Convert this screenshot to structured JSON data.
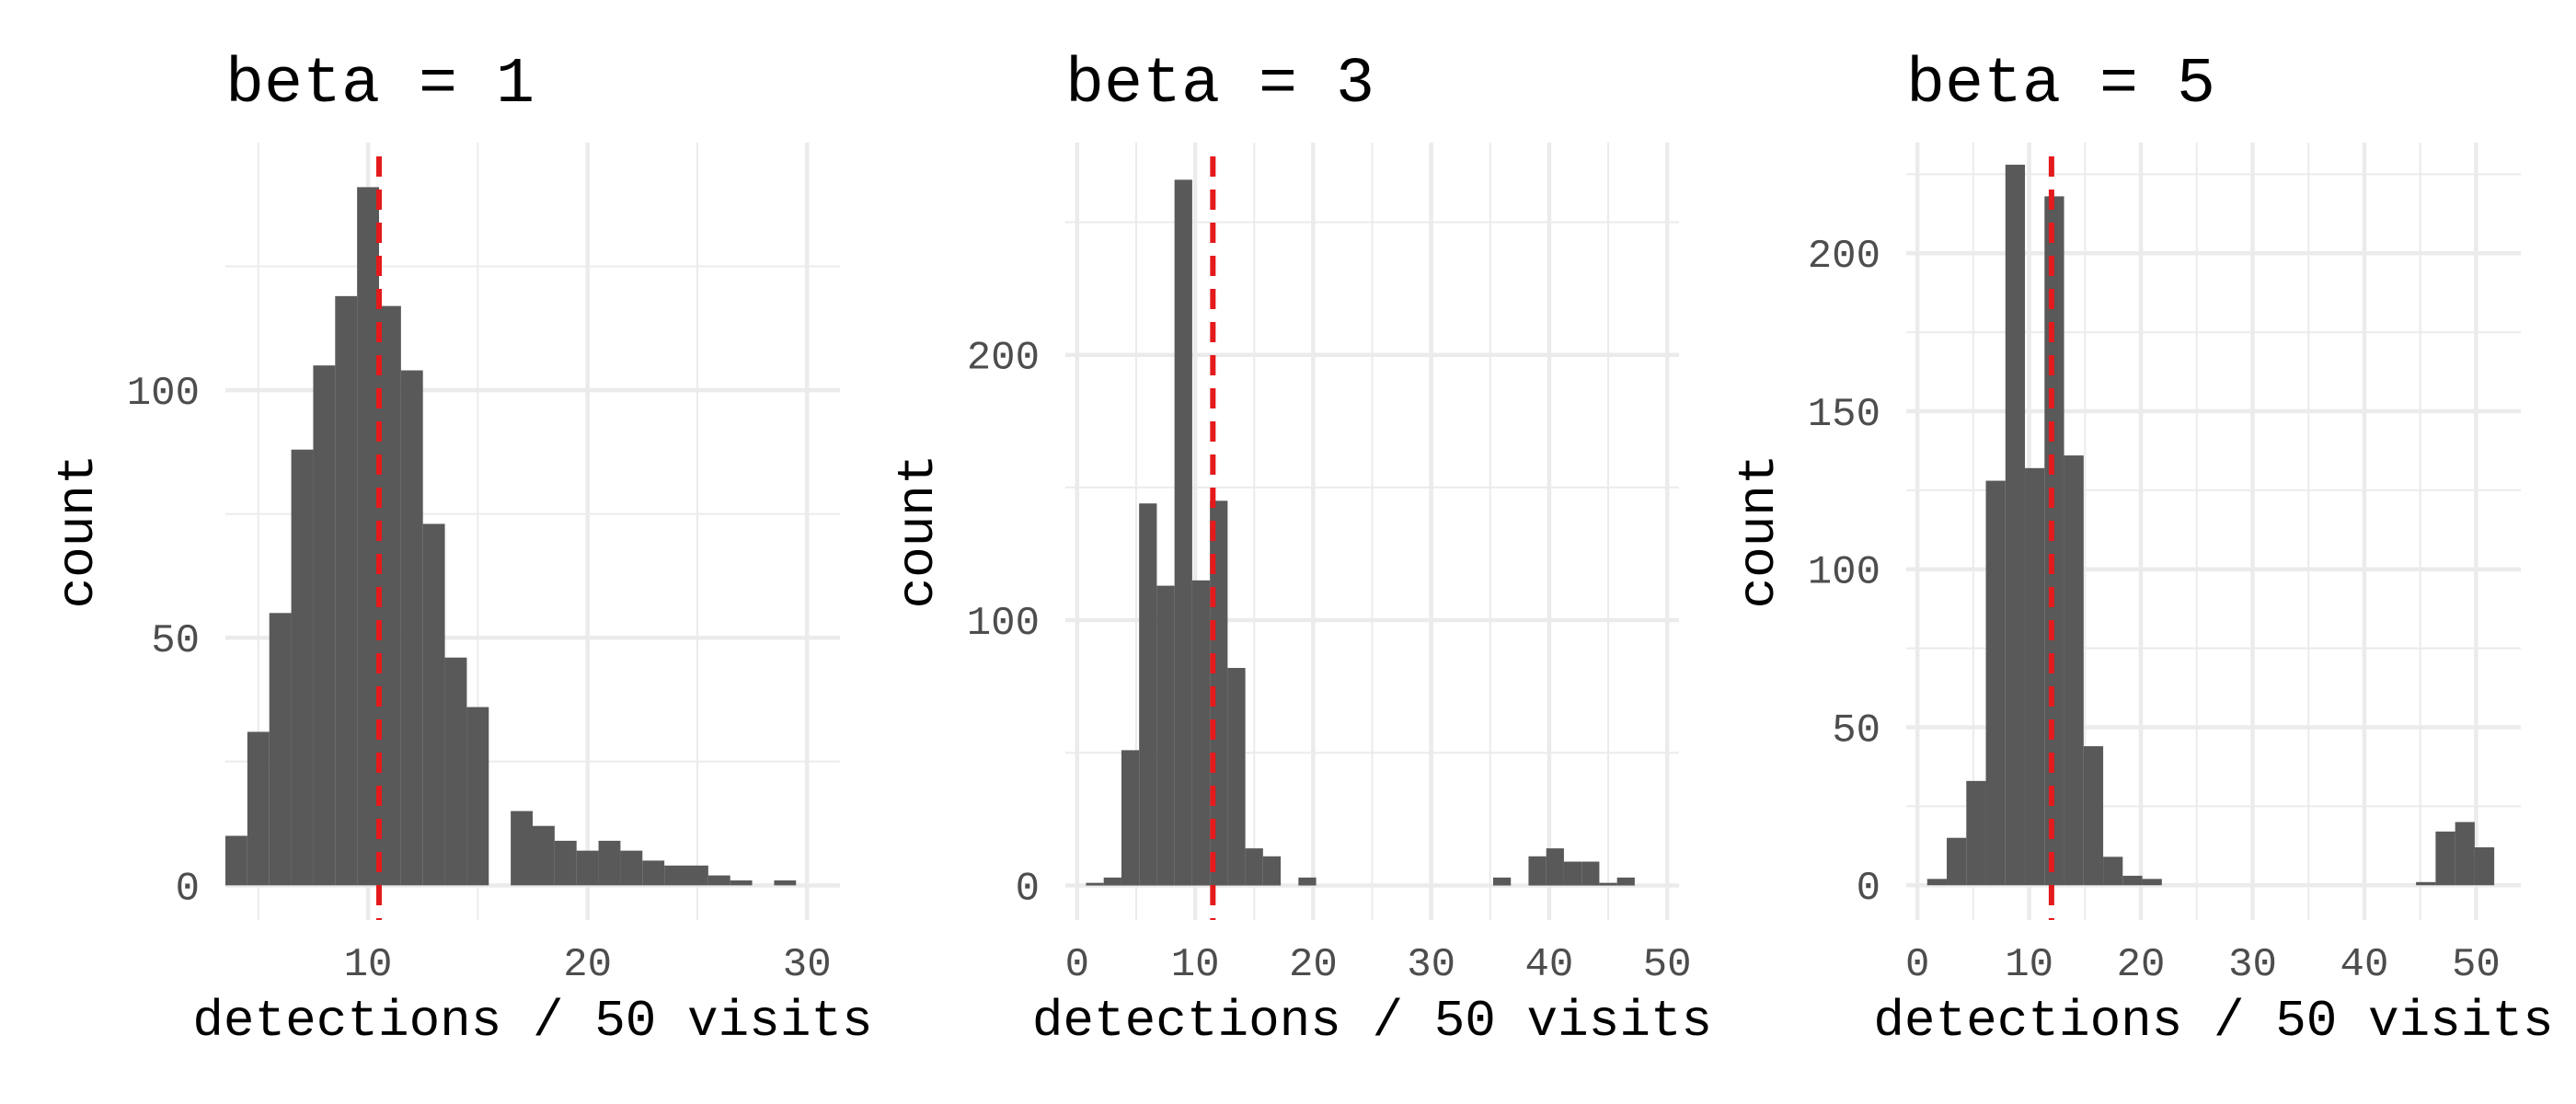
{
  "colors": {
    "bar": "#595959",
    "reference_line": "#e41a1c",
    "grid": "#ebebeb",
    "tick_text": "#4d4d4d"
  },
  "chart_data": [
    {
      "type": "bar",
      "title": "beta = 1",
      "xlabel": "detections / 50 visits",
      "ylabel": "count",
      "binwidth": 1,
      "xlim": [
        3.5,
        31.5
      ],
      "ylim": [
        -7,
        150
      ],
      "xticks": [
        10,
        20,
        30
      ],
      "yticks": [
        0,
        50,
        100
      ],
      "reference_line_x": 10.5,
      "bars": [
        {
          "x": 4,
          "count": 10
        },
        {
          "x": 5,
          "count": 31
        },
        {
          "x": 6,
          "count": 55
        },
        {
          "x": 7,
          "count": 88
        },
        {
          "x": 8,
          "count": 105
        },
        {
          "x": 9,
          "count": 119
        },
        {
          "x": 10,
          "count": 141
        },
        {
          "x": 11,
          "count": 117
        },
        {
          "x": 12,
          "count": 104
        },
        {
          "x": 13,
          "count": 73
        },
        {
          "x": 14,
          "count": 46
        },
        {
          "x": 15,
          "count": 36
        },
        {
          "x": 17,
          "count": 15
        },
        {
          "x": 18,
          "count": 12
        },
        {
          "x": 19,
          "count": 9
        },
        {
          "x": 20,
          "count": 7
        },
        {
          "x": 21,
          "count": 9
        },
        {
          "x": 22,
          "count": 7
        },
        {
          "x": 23,
          "count": 5
        },
        {
          "x": 24,
          "count": 4
        },
        {
          "x": 25,
          "count": 4
        },
        {
          "x": 26,
          "count": 2
        },
        {
          "x": 27,
          "count": 1
        },
        {
          "x": 29,
          "count": 1
        }
      ]
    },
    {
      "type": "bar",
      "title": "beta = 3",
      "xlabel": "detections / 50 visits",
      "ylabel": "count",
      "binwidth": 1.5,
      "xlim": [
        -1,
        51
      ],
      "ylim": [
        -13,
        280
      ],
      "xticks": [
        0,
        10,
        20,
        30,
        40,
        50
      ],
      "yticks": [
        0,
        100,
        200
      ],
      "reference_line_x": 11.5,
      "bars": [
        {
          "x": 1.5,
          "count": 1
        },
        {
          "x": 3,
          "count": 3
        },
        {
          "x": 4.5,
          "count": 51
        },
        {
          "x": 6,
          "count": 144
        },
        {
          "x": 7.5,
          "count": 113
        },
        {
          "x": 9,
          "count": 266
        },
        {
          "x": 10.5,
          "count": 115
        },
        {
          "x": 12,
          "count": 145
        },
        {
          "x": 13.5,
          "count": 82
        },
        {
          "x": 15,
          "count": 14
        },
        {
          "x": 16.5,
          "count": 11
        },
        {
          "x": 19.5,
          "count": 3
        },
        {
          "x": 36,
          "count": 3
        },
        {
          "x": 39,
          "count": 11
        },
        {
          "x": 40.5,
          "count": 14
        },
        {
          "x": 42,
          "count": 9
        },
        {
          "x": 43.5,
          "count": 9
        },
        {
          "x": 45,
          "count": 1
        },
        {
          "x": 46.5,
          "count": 3
        }
      ]
    },
    {
      "type": "bar",
      "title": "beta = 5",
      "xlabel": "detections / 50 visits",
      "ylabel": "count",
      "binwidth": 1.75,
      "xlim": [
        -1,
        54
      ],
      "ylim": [
        -11,
        235
      ],
      "xticks": [
        0,
        10,
        20,
        30,
        40,
        50
      ],
      "yticks": [
        0,
        50,
        100,
        150,
        200
      ],
      "reference_line_x": 12,
      "bars": [
        {
          "x": 1.75,
          "count": 2
        },
        {
          "x": 3.5,
          "count": 15
        },
        {
          "x": 5.25,
          "count": 33
        },
        {
          "x": 7,
          "count": 128
        },
        {
          "x": 8.75,
          "count": 228
        },
        {
          "x": 10.5,
          "count": 132
        },
        {
          "x": 12.25,
          "count": 218
        },
        {
          "x": 14,
          "count": 136
        },
        {
          "x": 15.75,
          "count": 44
        },
        {
          "x": 17.5,
          "count": 9
        },
        {
          "x": 19.25,
          "count": 3
        },
        {
          "x": 21,
          "count": 2
        },
        {
          "x": 45.5,
          "count": 1
        },
        {
          "x": 47.25,
          "count": 17
        },
        {
          "x": 49,
          "count": 20
        },
        {
          "x": 50.75,
          "count": 12
        }
      ]
    }
  ]
}
